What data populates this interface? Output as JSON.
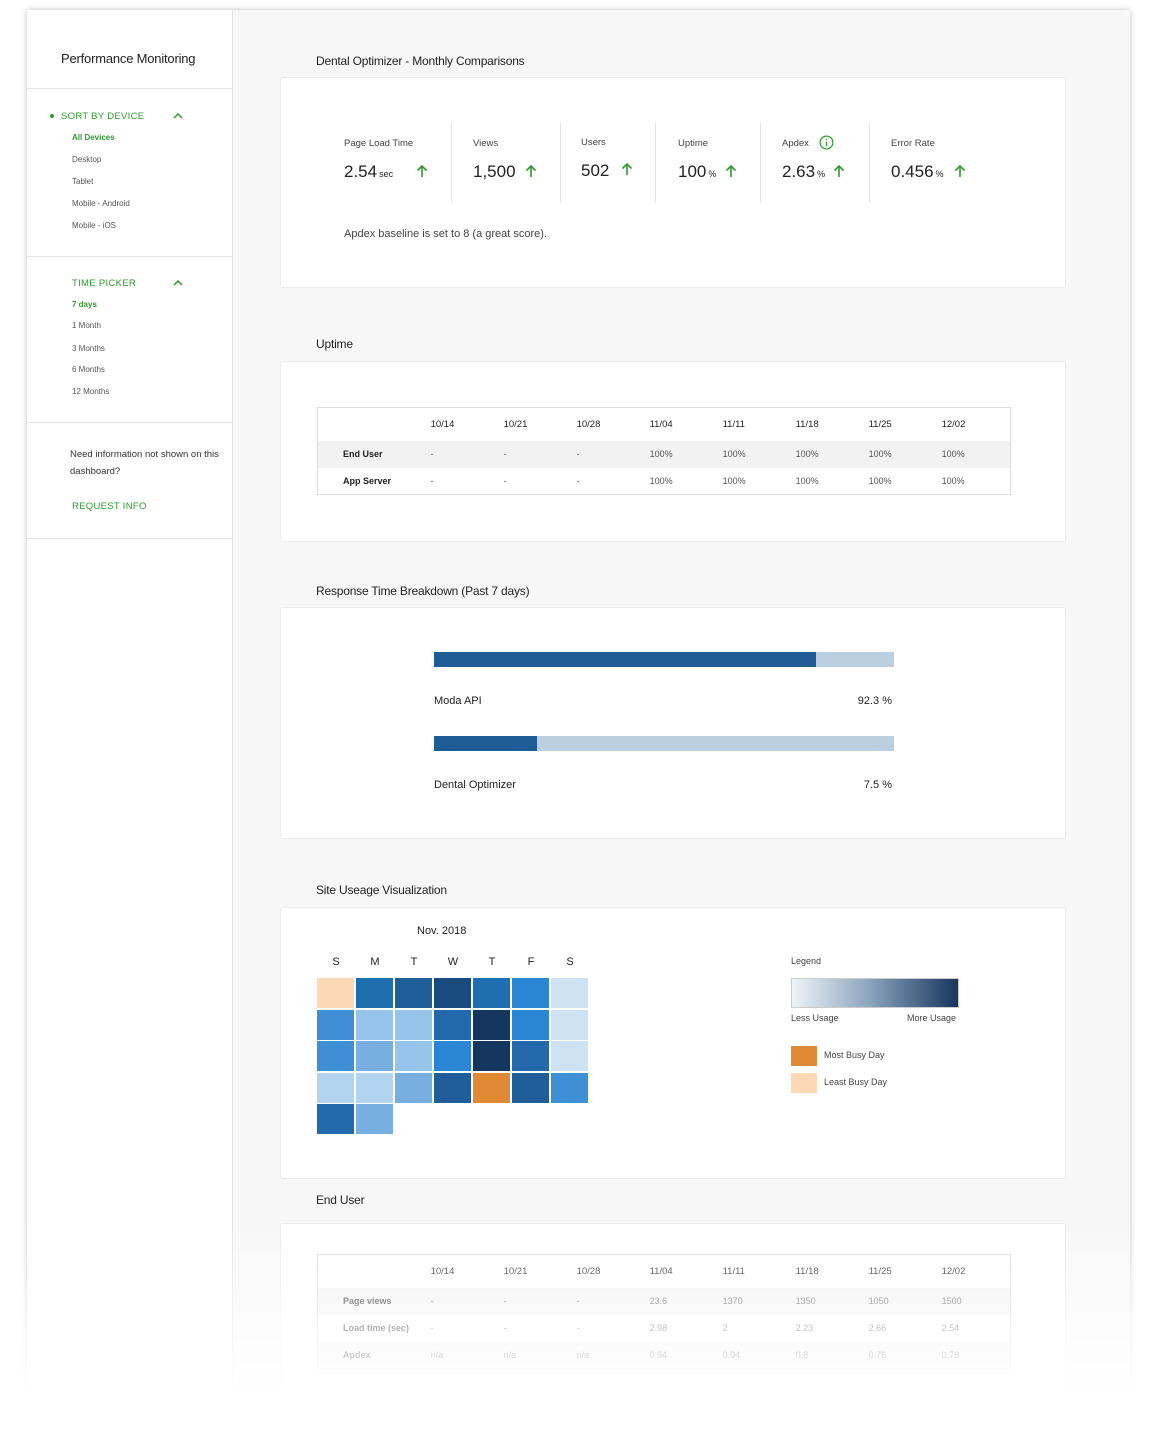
{
  "sidebar": {
    "app_title": "Performance Monitoring",
    "sort": {
      "header": "SORT BY DEVICE",
      "items": [
        "All Devices",
        "Desktop",
        "Tablet",
        "Mobile - Android",
        "Mobile - iOS"
      ],
      "active": "All Devices"
    },
    "time": {
      "header": "TIME PICKER",
      "items": [
        "7 days",
        "1 Month",
        "3 Months",
        "6 Months",
        "12 Months"
      ],
      "active": "7 days"
    },
    "need_info": "Need information not shown on this dashboard?",
    "request_label": "REQUEST INFO"
  },
  "comparisons": {
    "title": "Dental Optimizer - Monthly Comparisons",
    "metrics": [
      {
        "label": "Page Load Time",
        "value": "2.54",
        "unit": "sec"
      },
      {
        "label": "Views",
        "value": "1,500",
        "unit": ""
      },
      {
        "label": "Users",
        "value": "502",
        "unit": ""
      },
      {
        "label": "Uptime",
        "value": "100",
        "unit": "%"
      },
      {
        "label": "Apdex",
        "value": "2.63",
        "unit": "%"
      },
      {
        "label": "Error Rate",
        "value": "0.456",
        "unit": "%"
      }
    ],
    "note": "Apdex baseline is set to 8 (a great score)."
  },
  "uptime": {
    "title": "Uptime",
    "columns": [
      "",
      "10/14",
      "10/21",
      "10/28",
      "11/04",
      "11/11",
      "11/18",
      "11/25",
      "12/02"
    ],
    "rows": [
      [
        "End User",
        "-",
        "-",
        "-",
        "100%",
        "100%",
        "100%",
        "100%",
        "100%"
      ],
      [
        "App Server",
        "-",
        "-",
        "-",
        "100%",
        "100%",
        "100%",
        "100%",
        "100%"
      ]
    ]
  },
  "response": {
    "title": "Response Time Breakdown (Past 7 days)",
    "bars": [
      {
        "label": "Moda API",
        "pct_label": "92.3 %",
        "value": 92.3
      },
      {
        "label": "Dental Optimizer",
        "pct_label": "7.5 %",
        "value": 7.5
      }
    ]
  },
  "usage": {
    "title": "Site Useage Visualization",
    "month": "Nov. 2018",
    "days": [
      "S",
      "M",
      "T",
      "W",
      "T",
      "F",
      "S"
    ],
    "cells": [
      "#fcd8b4",
      "#1f6fb0",
      "#1f5e98",
      "#1a4b7e",
      "#1f6fb0",
      "#2a86d2",
      "#cde2f3",
      "#3e8fd4",
      "#97c4ea",
      "#97c4ea",
      "#2469ab",
      "#14355e",
      "#2a86d2",
      "#cde2f3",
      "#3e8fd4",
      "#77b0e0",
      "#97c4ea",
      "#2a86d2",
      "#14355e",
      "#2469ab",
      "#cde2f3",
      "#b3d4ef",
      "#b3d4ef",
      "#77b0e0",
      "#1f5e98",
      "#e08a35",
      "#1f5e98",
      "#3e8fd4",
      "#2469ab",
      "#77b0e0"
    ],
    "legend": {
      "title": "Legend",
      "less": "Less Usage",
      "more": "More Usage",
      "most_label": "Most Busy Day",
      "most_color": "#e08a35",
      "least_label": "Least Busy Day",
      "least_color": "#fcd8b4"
    }
  },
  "end_user": {
    "title": "End User",
    "columns": [
      "",
      "10/14",
      "10/21",
      "10/28",
      "11/04",
      "11/11",
      "11/18",
      "11/25",
      "12/02"
    ],
    "rows": [
      [
        "Page views",
        "-",
        "-",
        "-",
        "23.6",
        "1370",
        "1350",
        "1050",
        "1500"
      ],
      [
        "Load time (sec)",
        "-",
        "-",
        "-",
        "2.98",
        "2",
        "2.23",
        "2.66",
        "2.54"
      ],
      [
        "Apdex",
        "n/a",
        "n/a",
        "n/a",
        "0.94",
        "0.94",
        "0.8",
        "0.76",
        "0.78"
      ]
    ]
  },
  "colors": {
    "accent": "#2e9a2e",
    "bar_fill": "#1f5b94",
    "bar_track": "#bccfe0"
  }
}
